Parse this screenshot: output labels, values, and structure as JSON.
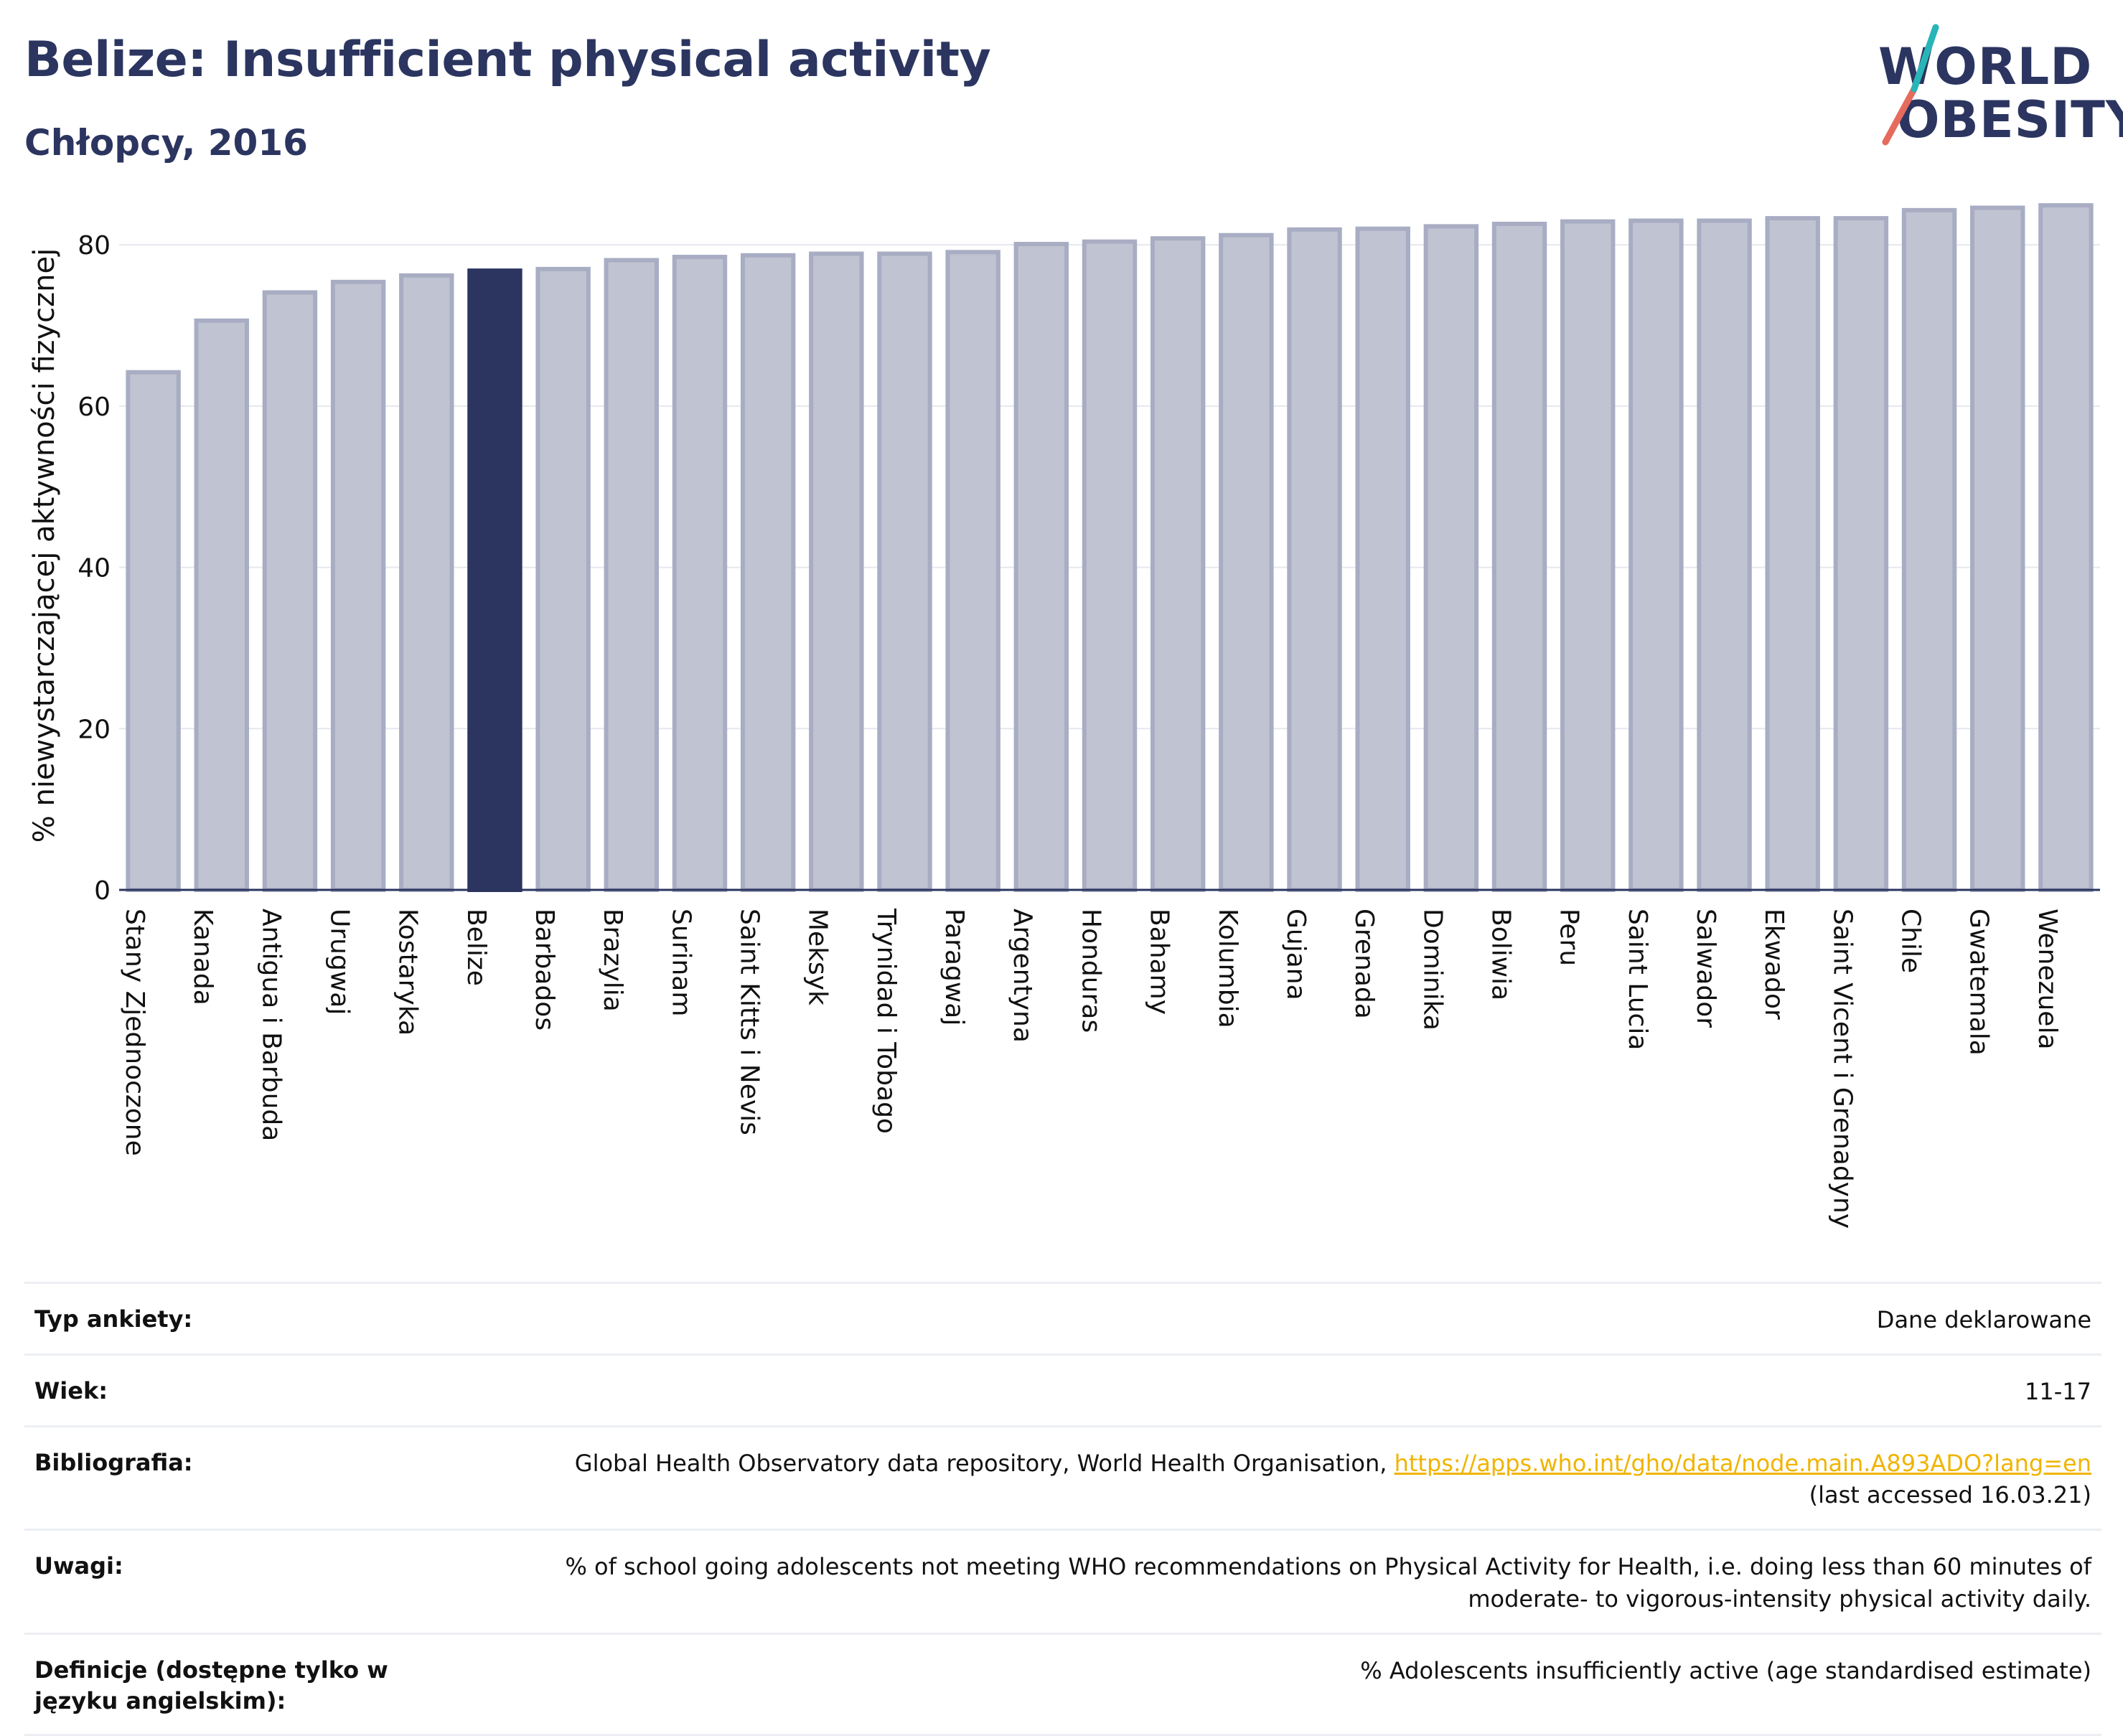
{
  "header": {
    "title": "Belize: Insufficient physical activity",
    "subtitle": "Chłopcy, 2016"
  },
  "logo": {
    "line1": "WORLD",
    "line2": "OBESITY",
    "text_color": "#2b3560",
    "slash_colors": [
      "#e56b5d",
      "#27b5b8"
    ]
  },
  "chart_data": {
    "type": "bar",
    "ylabel": "% niewystarczającej aktywności fizycznej",
    "xlabel": "",
    "ylim": [
      0,
      85
    ],
    "yticks": [
      0,
      20,
      40,
      60,
      80
    ],
    "grid": true,
    "highlight": "Belize",
    "colors": {
      "bar": "#c0c3d1",
      "bar_border": "#a8adc3",
      "highlight": "#2b3560",
      "axis": "#2b3560",
      "grid": "#e6e8ef"
    },
    "categories": [
      "Stany Zjednoczone",
      "Kanada",
      "Antigua i Barbuda",
      "Urugwaj",
      "Kostaryka",
      "Belize",
      "Barbados",
      "Brazylia",
      "Surinam",
      "Saint Kitts i Nevis",
      "Meksyk",
      "Trynidad i Tobago",
      "Paragwaj",
      "Argentyna",
      "Honduras",
      "Bahamy",
      "Kolumbia",
      "Gujana",
      "Grenada",
      "Dominika",
      "Boliwia",
      "Peru",
      "Saint Lucia",
      "Salwador",
      "Ekwador",
      "Saint Vicent i Grenadyny",
      "Chile",
      "Gwatemala",
      "Wenezuela"
    ],
    "values": [
      64.2,
      70.6,
      74.1,
      75.4,
      76.2,
      76.8,
      77.0,
      78.1,
      78.5,
      78.7,
      78.9,
      78.9,
      79.1,
      80.1,
      80.4,
      80.8,
      81.2,
      81.9,
      82.0,
      82.3,
      82.6,
      82.9,
      83.0,
      83.0,
      83.3,
      83.3,
      84.3,
      84.6,
      84.9
    ]
  },
  "info": {
    "rows": [
      {
        "label": "Typ ankiety:",
        "value": "Dane deklarowane"
      },
      {
        "label": "Wiek:",
        "value": "11-17"
      },
      {
        "label": "Bibliografia:",
        "value": "Global Health Observatory data repository, World Health Organisation, ",
        "link": "https://apps.who.int/gho/data/node.main.A893ADO?lang=en",
        "value2": "(last accessed 16.03.21)"
      },
      {
        "label": "Uwagi:",
        "value": "% of school going adolescents not meeting WHO recommendations on Physical Activity for Health, i.e. doing less than 60 minutes of moderate- to vigorous-intensity physical activity daily."
      },
      {
        "label": "Definicje (dostępne tylko w języku angielskim):",
        "value": "% Adolescents insufficiently active (age standardised estimate)"
      }
    ]
  }
}
